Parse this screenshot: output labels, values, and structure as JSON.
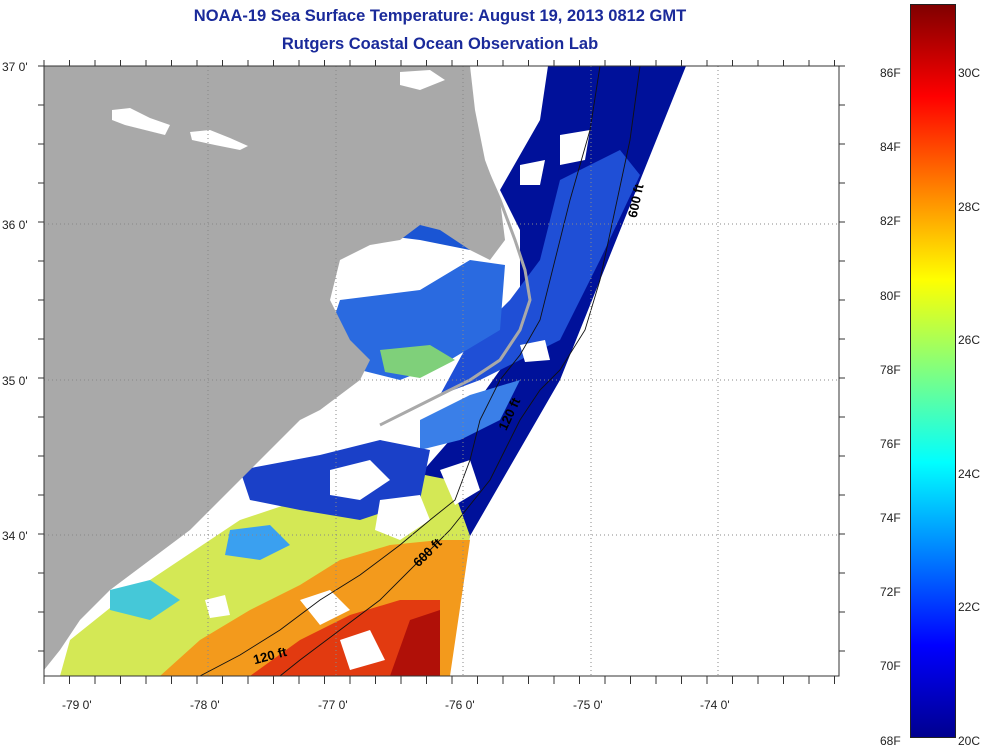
{
  "title_line1": "NOAA-19 Sea Surface Temperature:  August 19, 2013 0812 GMT",
  "title_line2": "Rutgers Coastal Ocean Observation Lab",
  "lat_labels": [
    "37 0'",
    "36 0'",
    "35 0'",
    "34 0'"
  ],
  "lon_labels": [
    "-79 0'",
    "-78 0'",
    "-77 0'",
    "-76 0'",
    "-75 0'",
    "-74 0'"
  ],
  "contours": {
    "c600_upper": "600 ft",
    "c120_mid": "120 ft",
    "c600_lower": "600 ft",
    "c120_lower": "120 ft"
  },
  "colorbar": {
    "f_labels": [
      "86F",
      "84F",
      "82F",
      "80F",
      "78F",
      "76F",
      "74F",
      "72F",
      "70F",
      "68F"
    ],
    "c_labels": [
      "30C",
      "28C",
      "26C",
      "24C",
      "22C",
      "20C"
    ],
    "min_c": 20,
    "max_c": 31.1,
    "colors": [
      "#00008f",
      "#0000ff",
      "#0080ff",
      "#00ffff",
      "#80ff80",
      "#ffff00",
      "#ff8000",
      "#ff0000",
      "#800000"
    ]
  },
  "colors": {
    "land": "#a9a9a9",
    "title": "#1a2a9a",
    "nodata": "#ffffff"
  }
}
